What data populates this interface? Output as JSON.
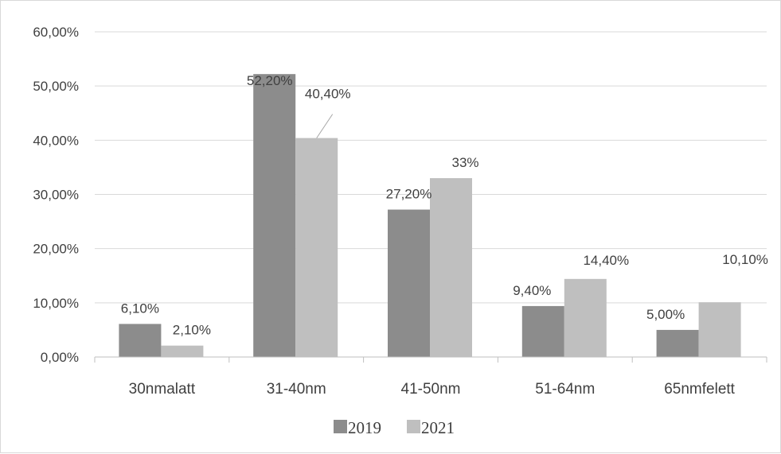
{
  "chart_data": {
    "type": "bar",
    "categories": [
      "30nmalatt",
      "31-40nm",
      "41-50nm",
      "51-64nm",
      "65nmfelett"
    ],
    "series": [
      {
        "name": "2019",
        "values": [
          6.1,
          52.2,
          27.2,
          9.4,
          5.0
        ],
        "labels": [
          "6,10%",
          "52,20%",
          "27,20%",
          "9,40%",
          "5,00%"
        ],
        "color": "#8c8c8c"
      },
      {
        "name": "2021",
        "values": [
          2.1,
          40.4,
          33,
          14.4,
          10.1
        ],
        "labels": [
          "2,10%",
          "40,40%",
          "33%",
          "14,40%",
          "10,10%"
        ],
        "color": "#bfbfbf"
      }
    ],
    "y_ticks": [
      0,
      10,
      20,
      30,
      40,
      50,
      60
    ],
    "y_tick_labels": [
      "0,00%",
      "10,00%",
      "20,00%",
      "30,00%",
      "40,00%",
      "50,00%",
      "60,00%"
    ],
    "ylim": [
      0,
      60
    ],
    "grid": true,
    "legend_position": "bottom",
    "title": "",
    "xlabel": "",
    "ylabel": "",
    "gridline_color": "#d9d9d9",
    "text_color": "#404040"
  }
}
